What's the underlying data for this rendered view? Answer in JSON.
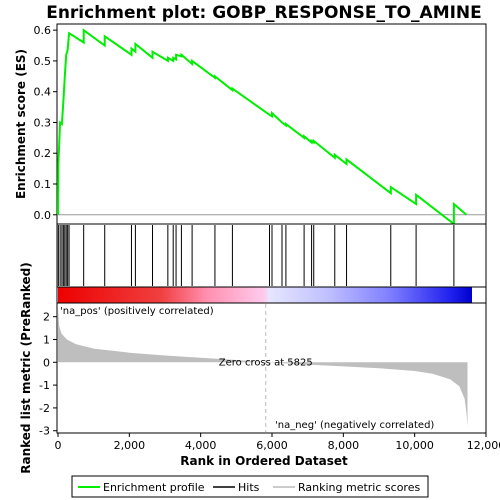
{
  "chart_data": {
    "type": "line",
    "title": "Enrichment plot: GOBP_RESPONSE_TO_AMINE",
    "xlabel": "Rank in Ordered Dataset",
    "top_ylabel": "Enrichment score (ES)",
    "bottom_ylabel": "Ranked list metric (PreRanked)",
    "xlim": [
      0,
      12000
    ],
    "es_ylim": [
      -0.03,
      0.62
    ],
    "metric_ylim": [
      -3.1,
      2.6
    ],
    "x_ticks": [
      0,
      2000,
      4000,
      6000,
      8000,
      10000,
      12000
    ],
    "x_tick_labels": [
      "0",
      "2,000",
      "4,000",
      "6,000",
      "8,000",
      "10,000",
      "12,000"
    ],
    "es_ticks": [
      0.0,
      0.1,
      0.2,
      0.3,
      0.4,
      0.5,
      0.6
    ],
    "es_tick_labels": [
      "0.0",
      "0.1",
      "0.2",
      "0.3",
      "0.4",
      "0.5",
      "0.6"
    ],
    "metric_ticks": [
      2,
      1,
      0,
      -1,
      -2,
      -3
    ],
    "metric_tick_labels": [
      "2",
      "1",
      "0",
      "-1",
      "-2",
      "-3"
    ],
    "n_genes": 11500,
    "zero_cross": 5825,
    "zero_cross_label": "Zero cross at 5825",
    "pos_label": "'na_pos' (positively correlated)",
    "neg_label": "'na_neg' (negatively correlated)",
    "hits": [
      10,
      60,
      110,
      150,
      190,
      230,
      270,
      310,
      720,
      1310,
      2060,
      2170,
      2650,
      3080,
      3230,
      3310,
      3460,
      3760,
      4400,
      4890,
      5930,
      6000,
      6280,
      6390,
      6900,
      7110,
      7170,
      7760,
      8090,
      9330,
      10040,
      11100
    ],
    "es_points": [
      [
        0,
        0.0
      ],
      [
        10,
        0.17
      ],
      [
        60,
        0.3
      ],
      [
        110,
        0.295
      ],
      [
        150,
        0.37
      ],
      [
        190,
        0.45
      ],
      [
        230,
        0.52
      ],
      [
        270,
        0.535
      ],
      [
        310,
        0.59
      ],
      [
        720,
        0.56
      ],
      [
        720,
        0.6
      ],
      [
        1310,
        0.55
      ],
      [
        1310,
        0.58
      ],
      [
        2060,
        0.52
      ],
      [
        2060,
        0.54
      ],
      [
        2170,
        0.53
      ],
      [
        2170,
        0.555
      ],
      [
        2650,
        0.51
      ],
      [
        2650,
        0.53
      ],
      [
        3080,
        0.5
      ],
      [
        3080,
        0.51
      ],
      [
        3230,
        0.5
      ],
      [
        3230,
        0.51
      ],
      [
        3310,
        0.505
      ],
      [
        3310,
        0.52
      ],
      [
        3460,
        0.515
      ],
      [
        3460,
        0.52
      ],
      [
        3760,
        0.49
      ],
      [
        3760,
        0.5
      ],
      [
        4400,
        0.445
      ],
      [
        4400,
        0.45
      ],
      [
        4890,
        0.405
      ],
      [
        4890,
        0.41
      ],
      [
        5930,
        0.325
      ],
      [
        5930,
        0.325
      ],
      [
        6000,
        0.32
      ],
      [
        6000,
        0.33
      ],
      [
        6280,
        0.3
      ],
      [
        6280,
        0.3
      ],
      [
        6390,
        0.29
      ],
      [
        6390,
        0.295
      ],
      [
        6900,
        0.25
      ],
      [
        6900,
        0.255
      ],
      [
        7110,
        0.235
      ],
      [
        7110,
        0.24
      ],
      [
        7170,
        0.235
      ],
      [
        7170,
        0.24
      ],
      [
        7760,
        0.185
      ],
      [
        7760,
        0.195
      ],
      [
        8090,
        0.165
      ],
      [
        8090,
        0.18
      ],
      [
        9330,
        0.07
      ],
      [
        9330,
        0.09
      ],
      [
        10040,
        0.035
      ],
      [
        10040,
        0.065
      ],
      [
        11100,
        -0.03
      ],
      [
        11100,
        0.035
      ],
      [
        11450,
        0.0
      ]
    ],
    "metric_curve": [
      [
        0,
        2.4
      ],
      [
        30,
        1.6
      ],
      [
        100,
        1.25
      ],
      [
        250,
        1.0
      ],
      [
        500,
        0.8
      ],
      [
        1000,
        0.6
      ],
      [
        2000,
        0.42
      ],
      [
        3000,
        0.3
      ],
      [
        4000,
        0.2
      ],
      [
        5000,
        0.1
      ],
      [
        5825,
        0.0
      ],
      [
        7000,
        -0.1
      ],
      [
        8000,
        -0.18
      ],
      [
        9000,
        -0.26
      ],
      [
        10000,
        -0.38
      ],
      [
        10500,
        -0.5
      ],
      [
        11000,
        -0.75
      ],
      [
        11250,
        -1.05
      ],
      [
        11400,
        -1.6
      ],
      [
        11450,
        -2.2
      ],
      [
        11480,
        -2.8
      ]
    ],
    "legend": [
      "Enrichment profile",
      "Hits",
      "Ranking metric scores"
    ],
    "colors": {
      "es_line": "#00ee00",
      "hits": "#000000",
      "metric_fill": "#bebebe",
      "zero_line": "#bbbbbb",
      "pos_text": "#ff0000",
      "neg_text": "#0000ff",
      "bar_pos": "#e00000",
      "bar_neg": "#0000dd"
    }
  }
}
